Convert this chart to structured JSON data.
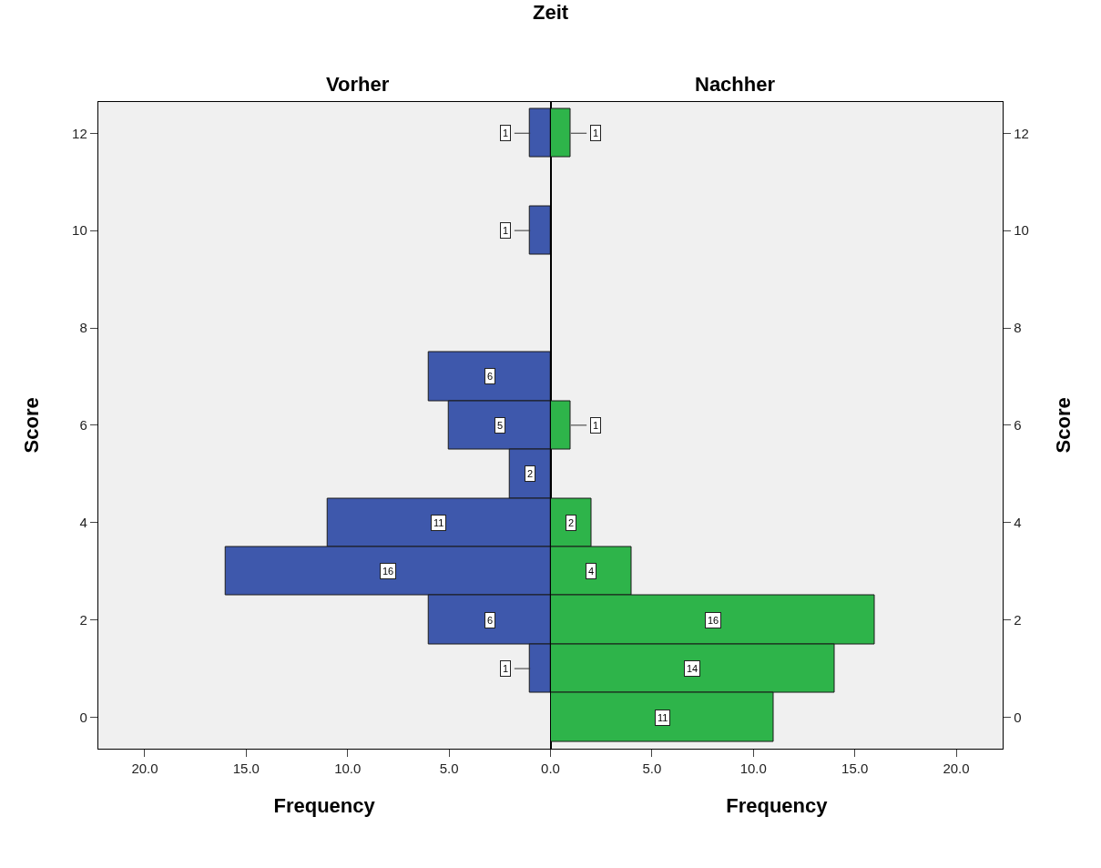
{
  "chart_data": [
    {
      "type": "bar",
      "orientation": "horizontal",
      "title": "Vorher",
      "xlabel": "Frequency",
      "ylabel": "Score",
      "annotations": [
        "Zeit"
      ],
      "categories": [
        "12",
        null,
        "10",
        null,
        "8",
        null,
        "6",
        null,
        "4",
        null,
        "2",
        null,
        "0"
      ],
      "series": [
        {
          "color": "#3e58ac",
          "values": [
            1,
            null,
            1,
            null,
            null,
            6,
            5,
            2,
            11,
            16,
            6,
            1,
            null
          ]
        }
      ],
      "xlim": [
        22.3,
        0
      ],
      "xticks": [
        {
          "value": 20,
          "label": "20.0"
        },
        {
          "value": 15,
          "label": "15.0"
        },
        {
          "value": 10,
          "label": "10.0"
        },
        {
          "value": 5,
          "label": "5.0"
        },
        {
          "value": 0,
          "label": "0.0"
        }
      ],
      "data_labels": true,
      "grid": false
    },
    {
      "type": "bar",
      "orientation": "horizontal",
      "title": "Nachher",
      "xlabel": "Frequency",
      "ylabel": "Score",
      "categories": [
        "12",
        null,
        "10",
        null,
        "8",
        null,
        "6",
        null,
        "4",
        null,
        "2",
        null,
        "0"
      ],
      "series": [
        {
          "color": "#2eb44a",
          "values": [
            1,
            null,
            null,
            null,
            null,
            null,
            1,
            null,
            2,
            4,
            16,
            14,
            11
          ]
        }
      ],
      "xlim": [
        0,
        22.3
      ],
      "xticks": [
        {
          "value": 0,
          "label": null
        },
        {
          "value": 5,
          "label": "5.0"
        },
        {
          "value": 10,
          "label": "10.0"
        },
        {
          "value": 15,
          "label": "15.0"
        },
        {
          "value": 20,
          "label": "20.0"
        }
      ],
      "data_labels": true,
      "grid": false
    }
  ]
}
